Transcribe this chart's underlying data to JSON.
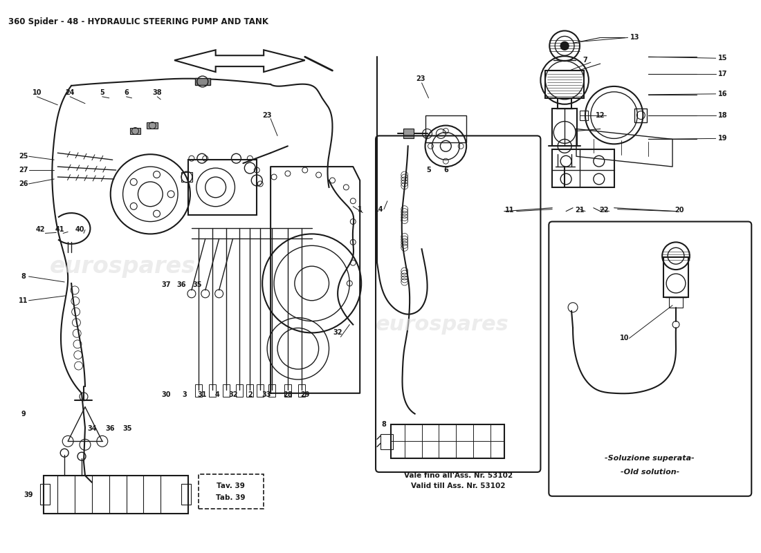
{
  "title": "360 Spider - 48 - HYDRAULIC STEERING PUMP AND TANK",
  "title_fontsize": 8.5,
  "bg_color": "#ffffff",
  "line_color": "#1a1a1a",
  "text_color": "#1a1a1a",
  "fig_width": 11.0,
  "fig_height": 8.0,
  "dpi": 100,
  "box1_line1": "Tav. 39",
  "box1_line2": "Tab. 39",
  "box2_line1": "Vale fino all'Ass. Nr. 53102",
  "box2_line2": "Valid till Ass. Nr. 53102",
  "box3_line1": "-Soluzione superata-",
  "box3_line2": "-Old solution-",
  "watermark": "eurospares"
}
